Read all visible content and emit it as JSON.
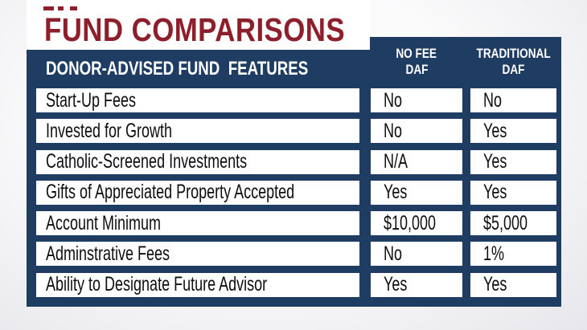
{
  "page": {
    "title": "FUND COMPARISONS",
    "colors": {
      "title_maroon": "#8d1f2b",
      "table_navy": "#1f3d63",
      "cell_background": "#ffffff",
      "cell_text": "#0e0e0e",
      "header_text": "#ffffff"
    }
  },
  "table": {
    "feature_header": "DONOR-ADVISED FUND  FEATURES",
    "columns": [
      {
        "line1": "NO FEE",
        "line2": "DAF"
      },
      {
        "line1": "TRADITIONAL",
        "line2": "DAF"
      }
    ],
    "rows": [
      {
        "feature": "Start-Up Fees",
        "no_fee": "No",
        "traditional": "No"
      },
      {
        "feature": "Invested for Growth",
        "no_fee": "No",
        "traditional": "Yes"
      },
      {
        "feature": "Catholic-Screened Investments",
        "no_fee": "N/A",
        "traditional": "Yes"
      },
      {
        "feature": "Gifts of Appreciated Property Accepted",
        "no_fee": "Yes",
        "traditional": "Yes"
      },
      {
        "feature": "Account Minimum",
        "no_fee": "$10,000",
        "traditional": "$5,000"
      },
      {
        "feature": "Adminstrative Fees",
        "no_fee": "No",
        "traditional": "1%"
      },
      {
        "feature": "Ability to Designate Future Advisor",
        "no_fee": "Yes",
        "traditional": "Yes"
      }
    ]
  }
}
